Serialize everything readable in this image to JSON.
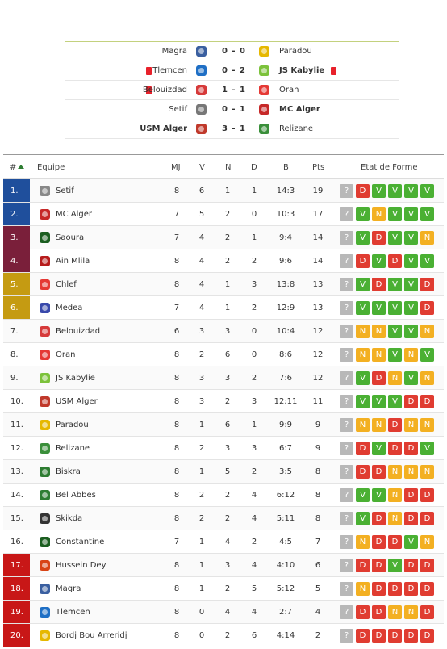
{
  "matches": [
    {
      "home": "Magra",
      "score": "0 - 0",
      "away": "Paradou",
      "home_bold": false,
      "away_bold": false,
      "home_red": false,
      "away_red": false,
      "home_color": "#3a5fa0",
      "away_color": "#e6b800"
    },
    {
      "home": "Tlemcen",
      "score": "0 - 2",
      "away": "JS Kabylie",
      "home_bold": false,
      "away_bold": true,
      "home_red": true,
      "away_red": true,
      "home_color": "#1f6fc5",
      "away_color": "#7cc23b"
    },
    {
      "home": "Belouizdad",
      "score": "1 - 1",
      "away": "Oran",
      "home_bold": false,
      "away_bold": false,
      "home_red": true,
      "away_red": false,
      "home_color": "#d63a3a",
      "away_color": "#e53935"
    },
    {
      "home": "Setif",
      "score": "0 - 1",
      "away": "MC Alger",
      "home_bold": false,
      "away_bold": true,
      "home_red": false,
      "away_red": false,
      "home_color": "#777777",
      "away_color": "#c62828"
    },
    {
      "home": "USM Alger",
      "score": "3 - 1",
      "away": "Relizane",
      "home_bold": true,
      "away_bold": false,
      "home_red": false,
      "away_red": false,
      "home_color": "#c0392b",
      "away_color": "#3a8f3a"
    }
  ],
  "table": {
    "headers": {
      "pos": "#",
      "team": "Equipe",
      "mj": "MJ",
      "v": "V",
      "n": "N",
      "d": "D",
      "b": "B",
      "pts": "Pts",
      "form": "Etat de Forme"
    },
    "rows": [
      {
        "pos": "1.",
        "zone": "blue",
        "team": "Setif",
        "color": "#888888",
        "mj": "8",
        "v": "6",
        "n": "1",
        "d": "1",
        "b": "14:3",
        "pts": "19",
        "form": [
          "?",
          "D",
          "V",
          "V",
          "V",
          "V"
        ]
      },
      {
        "pos": "2.",
        "zone": "blue",
        "team": "MC Alger",
        "color": "#c62828",
        "mj": "7",
        "v": "5",
        "n": "2",
        "d": "0",
        "b": "10:3",
        "pts": "17",
        "form": [
          "?",
          "V",
          "N",
          "V",
          "V",
          "V"
        ]
      },
      {
        "pos": "3.",
        "zone": "maroon",
        "team": "Saoura",
        "color": "#1b5e20",
        "mj": "7",
        "v": "4",
        "n": "2",
        "d": "1",
        "b": "9:4",
        "pts": "14",
        "form": [
          "?",
          "V",
          "D",
          "V",
          "V",
          "N"
        ]
      },
      {
        "pos": "4.",
        "zone": "maroon",
        "team": "Ain Mlila",
        "color": "#b71c1c",
        "mj": "8",
        "v": "4",
        "n": "2",
        "d": "2",
        "b": "9:6",
        "pts": "14",
        "form": [
          "?",
          "D",
          "V",
          "D",
          "V",
          "V"
        ]
      },
      {
        "pos": "5.",
        "zone": "gold",
        "team": "Chlef",
        "color": "#e53935",
        "mj": "8",
        "v": "4",
        "n": "1",
        "d": "3",
        "b": "13:8",
        "pts": "13",
        "form": [
          "?",
          "V",
          "D",
          "V",
          "V",
          "D"
        ]
      },
      {
        "pos": "6.",
        "zone": "gold",
        "team": "Medea",
        "color": "#3949ab",
        "mj": "7",
        "v": "4",
        "n": "1",
        "d": "2",
        "b": "12:9",
        "pts": "13",
        "form": [
          "?",
          "V",
          "V",
          "V",
          "V",
          "D"
        ]
      },
      {
        "pos": "7.",
        "zone": "none",
        "team": "Belouizdad",
        "color": "#d63a3a",
        "mj": "6",
        "v": "3",
        "n": "3",
        "d": "0",
        "b": "10:4",
        "pts": "12",
        "form": [
          "?",
          "N",
          "N",
          "V",
          "V",
          "N"
        ]
      },
      {
        "pos": "8.",
        "zone": "none",
        "team": "Oran",
        "color": "#e53935",
        "mj": "8",
        "v": "2",
        "n": "6",
        "d": "0",
        "b": "8:6",
        "pts": "12",
        "form": [
          "?",
          "N",
          "N",
          "V",
          "N",
          "V"
        ]
      },
      {
        "pos": "9.",
        "zone": "none",
        "team": "JS Kabylie",
        "color": "#7cc23b",
        "mj": "8",
        "v": "3",
        "n": "3",
        "d": "2",
        "b": "7:6",
        "pts": "12",
        "form": [
          "?",
          "V",
          "D",
          "N",
          "V",
          "N"
        ]
      },
      {
        "pos": "10.",
        "zone": "none",
        "team": "USM Alger",
        "color": "#c0392b",
        "mj": "8",
        "v": "3",
        "n": "2",
        "d": "3",
        "b": "12:11",
        "pts": "11",
        "form": [
          "?",
          "V",
          "V",
          "V",
          "D",
          "D"
        ]
      },
      {
        "pos": "11.",
        "zone": "none",
        "team": "Paradou",
        "color": "#e6b800",
        "mj": "8",
        "v": "1",
        "n": "6",
        "d": "1",
        "b": "9:9",
        "pts": "9",
        "form": [
          "?",
          "N",
          "N",
          "D",
          "N",
          "N"
        ]
      },
      {
        "pos": "12.",
        "zone": "none",
        "team": "Relizane",
        "color": "#3a8f3a",
        "mj": "8",
        "v": "2",
        "n": "3",
        "d": "3",
        "b": "6:7",
        "pts": "9",
        "form": [
          "?",
          "D",
          "V",
          "D",
          "D",
          "V"
        ]
      },
      {
        "pos": "13.",
        "zone": "none",
        "team": "Biskra",
        "color": "#2e7d32",
        "mj": "8",
        "v": "1",
        "n": "5",
        "d": "2",
        "b": "3:5",
        "pts": "8",
        "form": [
          "?",
          "D",
          "D",
          "N",
          "N",
          "N"
        ]
      },
      {
        "pos": "14.",
        "zone": "none",
        "team": "Bel Abbes",
        "color": "#2e7d32",
        "mj": "8",
        "v": "2",
        "n": "2",
        "d": "4",
        "b": "6:12",
        "pts": "8",
        "form": [
          "?",
          "V",
          "V",
          "N",
          "D",
          "D"
        ]
      },
      {
        "pos": "15.",
        "zone": "none",
        "team": "Skikda",
        "color": "#333333",
        "mj": "8",
        "v": "2",
        "n": "2",
        "d": "4",
        "b": "5:11",
        "pts": "8",
        "form": [
          "?",
          "V",
          "D",
          "N",
          "D",
          "D"
        ]
      },
      {
        "pos": "16.",
        "zone": "none",
        "team": "Constantine",
        "color": "#1b5e20",
        "mj": "7",
        "v": "1",
        "n": "4",
        "d": "2",
        "b": "4:5",
        "pts": "7",
        "form": [
          "?",
          "N",
          "D",
          "D",
          "V",
          "N"
        ]
      },
      {
        "pos": "17.",
        "zone": "red",
        "team": "Hussein Dey",
        "color": "#d84315",
        "mj": "8",
        "v": "1",
        "n": "3",
        "d": "4",
        "b": "4:10",
        "pts": "6",
        "form": [
          "?",
          "D",
          "D",
          "V",
          "D",
          "D"
        ]
      },
      {
        "pos": "18.",
        "zone": "red",
        "team": "Magra",
        "color": "#3a5fa0",
        "mj": "8",
        "v": "1",
        "n": "2",
        "d": "5",
        "b": "5:12",
        "pts": "5",
        "form": [
          "?",
          "N",
          "D",
          "D",
          "D",
          "D"
        ]
      },
      {
        "pos": "19.",
        "zone": "red",
        "team": "Tlemcen",
        "color": "#1f6fc5",
        "mj": "8",
        "v": "0",
        "n": "4",
        "d": "4",
        "b": "2:7",
        "pts": "4",
        "form": [
          "?",
          "D",
          "D",
          "N",
          "N",
          "D"
        ]
      },
      {
        "pos": "20.",
        "zone": "red",
        "team": "Bordj Bou Arreridj",
        "color": "#e6b800",
        "mj": "8",
        "v": "0",
        "n": "2",
        "d": "6",
        "b": "4:14",
        "pts": "2",
        "form": [
          "?",
          "D",
          "D",
          "D",
          "D",
          "D"
        ]
      }
    ]
  },
  "colors": {
    "win": "#4ab033",
    "loss": "#e03c31",
    "draw": "#f3b022",
    "unknown": "#b8b8b8",
    "red_card": "#e8212b",
    "accent_line": "#c3d17e"
  }
}
